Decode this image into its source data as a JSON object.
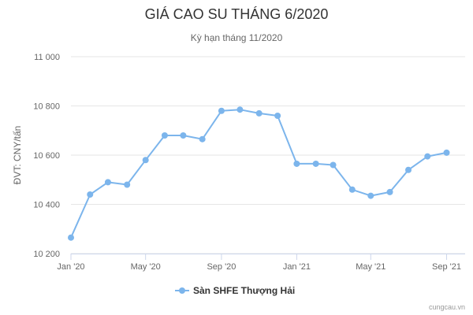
{
  "chart_data": {
    "type": "line",
    "title": "GIÁ CAO SU THÁNG 6/2020",
    "subtitle": "Kỳ hạn tháng 11/2020",
    "ylabel": "ĐVT: CNY/tấn",
    "xlabel": "",
    "ylim": [
      10200,
      11000
    ],
    "yticks": [
      10200,
      10400,
      10600,
      10800,
      11000
    ],
    "ytick_labels": [
      "10 200",
      "10 400",
      "10 600",
      "10 800",
      "11 000"
    ],
    "xlim": [
      "2020-01-01",
      "2021-10-01"
    ],
    "xticks": [
      "2020-01-01",
      "2020-05-01",
      "2020-09-01",
      "2021-01-01",
      "2021-05-01",
      "2021-09-01"
    ],
    "xtick_labels": [
      "Jan '20",
      "May '20",
      "Sep '20",
      "Jan '21",
      "May '21",
      "Sep '21"
    ],
    "grid": true,
    "legend_position": "bottom-center",
    "series": [
      {
        "name": "Sàn SHFE Thượng Hải",
        "color": "#7cb5ec",
        "x": [
          "2020-01-01",
          "2020-02-01",
          "2020-03-01",
          "2020-04-01",
          "2020-05-01",
          "2020-06-01",
          "2020-07-01",
          "2020-08-01",
          "2020-09-01",
          "2020-10-01",
          "2020-11-01",
          "2020-12-01",
          "2021-01-01",
          "2021-02-01",
          "2021-03-01",
          "2021-04-01",
          "2021-05-01",
          "2021-06-01",
          "2021-07-01",
          "2021-08-01",
          "2021-09-01"
        ],
        "values": [
          10265,
          10440,
          10490,
          10480,
          10580,
          10680,
          10680,
          10665,
          10780,
          10785,
          10770,
          10760,
          10565,
          10565,
          10560,
          10460,
          10435,
          10450,
          10540,
          10595,
          10610
        ]
      }
    ]
  },
  "credit": "cungcau.vn"
}
